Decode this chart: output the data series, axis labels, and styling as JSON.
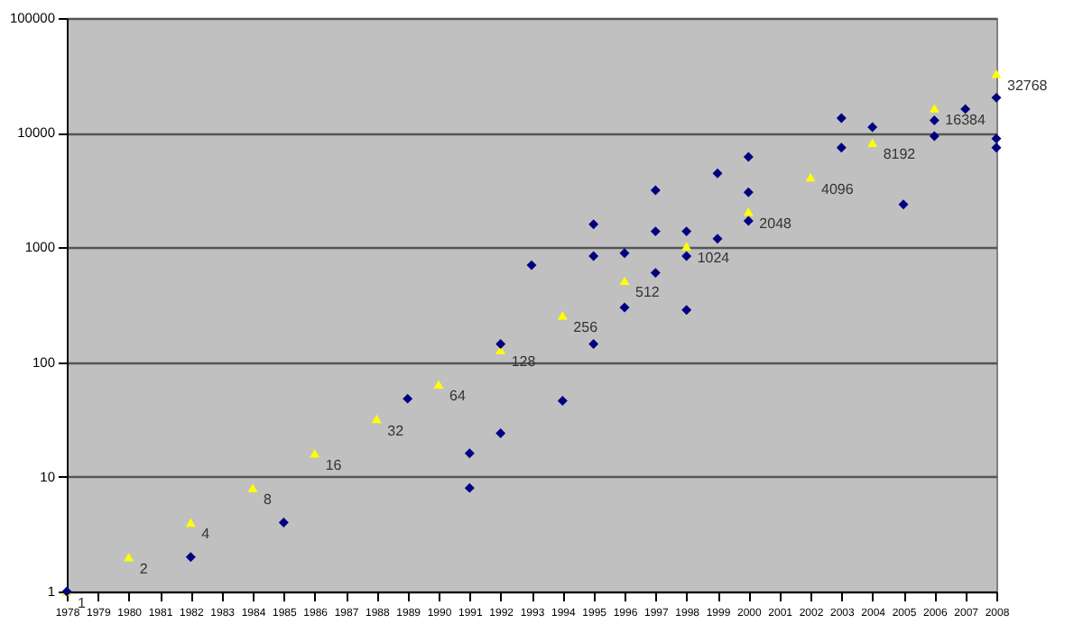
{
  "chart_data": {
    "type": "scatter",
    "log": "y",
    "grid": "y",
    "xlim": [
      1978,
      2008
    ],
    "xticks": [
      1978,
      1979,
      1980,
      1981,
      1982,
      1983,
      1984,
      1985,
      1986,
      1987,
      1988,
      1989,
      1990,
      1991,
      1992,
      1993,
      1994,
      1995,
      1996,
      1997,
      1998,
      1999,
      2000,
      2001,
      2002,
      2003,
      2004,
      2005,
      2006,
      2007,
      2008
    ],
    "ylim": [
      1,
      100000
    ],
    "yticks": [
      1,
      10,
      100,
      1000,
      10000,
      100000
    ],
    "series": [
      {
        "color": "#ffff00",
        "marker": "triangle",
        "x": [
          1978,
          1980,
          1982,
          1984,
          1986,
          1988,
          1990,
          1992,
          1994,
          1996,
          1998,
          2000,
          2002,
          2004,
          2006,
          2008
        ],
        "values": [
          1,
          2,
          4,
          8,
          16,
          32,
          64,
          128,
          256,
          512,
          1024,
          2048,
          4096,
          8192,
          16384,
          32768
        ],
        "value_labels": [
          "1",
          "2",
          "4",
          "8",
          "16",
          "32",
          "64",
          "128",
          "256",
          "512",
          "1024",
          "2048",
          "4096",
          "8192",
          "16384",
          "32768"
        ]
      },
      {
        "color": "#000080",
        "marker": "diamond",
        "x": [
          1978,
          1982,
          1985,
          1989,
          1991,
          1991,
          1992,
          1992,
          1993,
          1994,
          1995,
          1995,
          1995,
          1996,
          1996,
          1997,
          1997,
          1997,
          1998,
          1998,
          1998,
          1999,
          1999,
          2000,
          2000,
          2000,
          2003,
          2003,
          2004,
          2005,
          2006,
          2006,
          2007,
          2008,
          2008,
          2008
        ],
        "values": [
          1,
          2,
          4,
          48,
          16,
          8,
          144,
          24,
          700,
          46,
          1590,
          840,
          144,
          890,
          300,
          3150,
          1380,
          600,
          1380,
          840,
          285,
          1190,
          4420,
          3020,
          1700,
          6150,
          13400,
          7400,
          11200,
          2370,
          12800,
          9330,
          16100,
          20200,
          8900,
          7400
        ]
      }
    ]
  }
}
